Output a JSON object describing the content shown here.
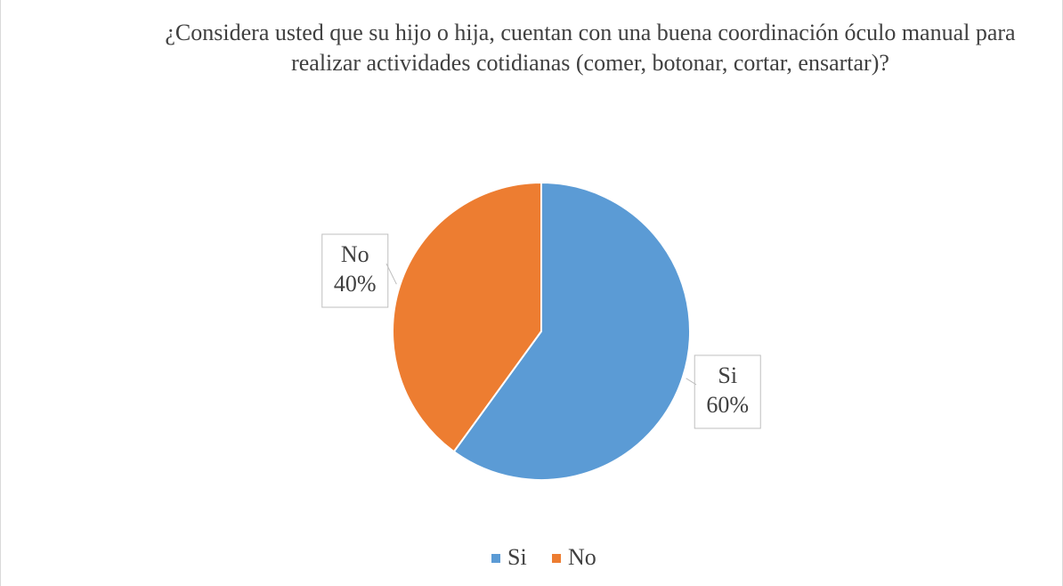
{
  "chart_data": {
    "type": "pie",
    "title": "¿Considera usted que su hijo o hija, cuentan con una buena coordinación óculo manual para realizar actividades cotidianas (comer, botonar, cortar, ensartar)?",
    "categories": [
      "Si",
      "No"
    ],
    "values": [
      60,
      40
    ],
    "value_labels": [
      "60%",
      "40%"
    ],
    "colors": [
      "#5b9bd5",
      "#ed7d31"
    ],
    "legend": "bottom"
  }
}
